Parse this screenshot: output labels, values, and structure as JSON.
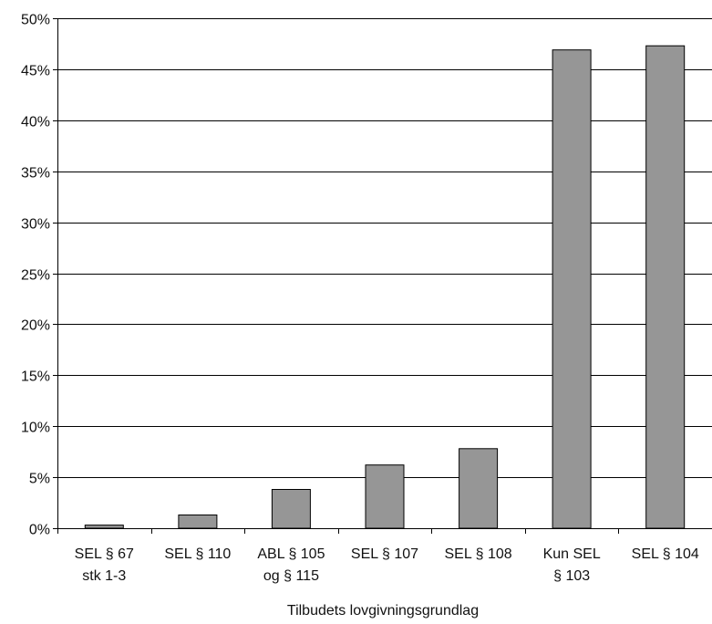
{
  "chart_data": {
    "type": "bar",
    "title": "",
    "xlabel": "Tilbudets lovgivningsgrundlag",
    "ylabel": "",
    "ylim": [
      0,
      0.5
    ],
    "yticks": [
      0,
      0.05,
      0.1,
      0.15,
      0.2,
      0.25,
      0.3,
      0.35,
      0.4,
      0.45,
      0.5
    ],
    "ytick_labels": [
      "0%",
      "5%",
      "10%",
      "15%",
      "20%",
      "25%",
      "30%",
      "35%",
      "40%",
      "45%",
      "50%"
    ],
    "grid": true,
    "categories": [
      [
        "SEL § 67",
        "stk 1-3"
      ],
      [
        "SEL § 110"
      ],
      [
        "ABL § 105",
        "og § 115"
      ],
      [
        "SEL § 107"
      ],
      [
        "SEL § 108"
      ],
      [
        "Kun SEL",
        "§ 103"
      ],
      [
        "SEL § 104"
      ]
    ],
    "values": [
      0.003,
      0.013,
      0.038,
      0.062,
      0.078,
      0.469,
      0.473
    ],
    "colors": {
      "bar_fill": "#969696",
      "bar_stroke": "#000000",
      "axis": "#000000",
      "grid": "#000000"
    }
  }
}
